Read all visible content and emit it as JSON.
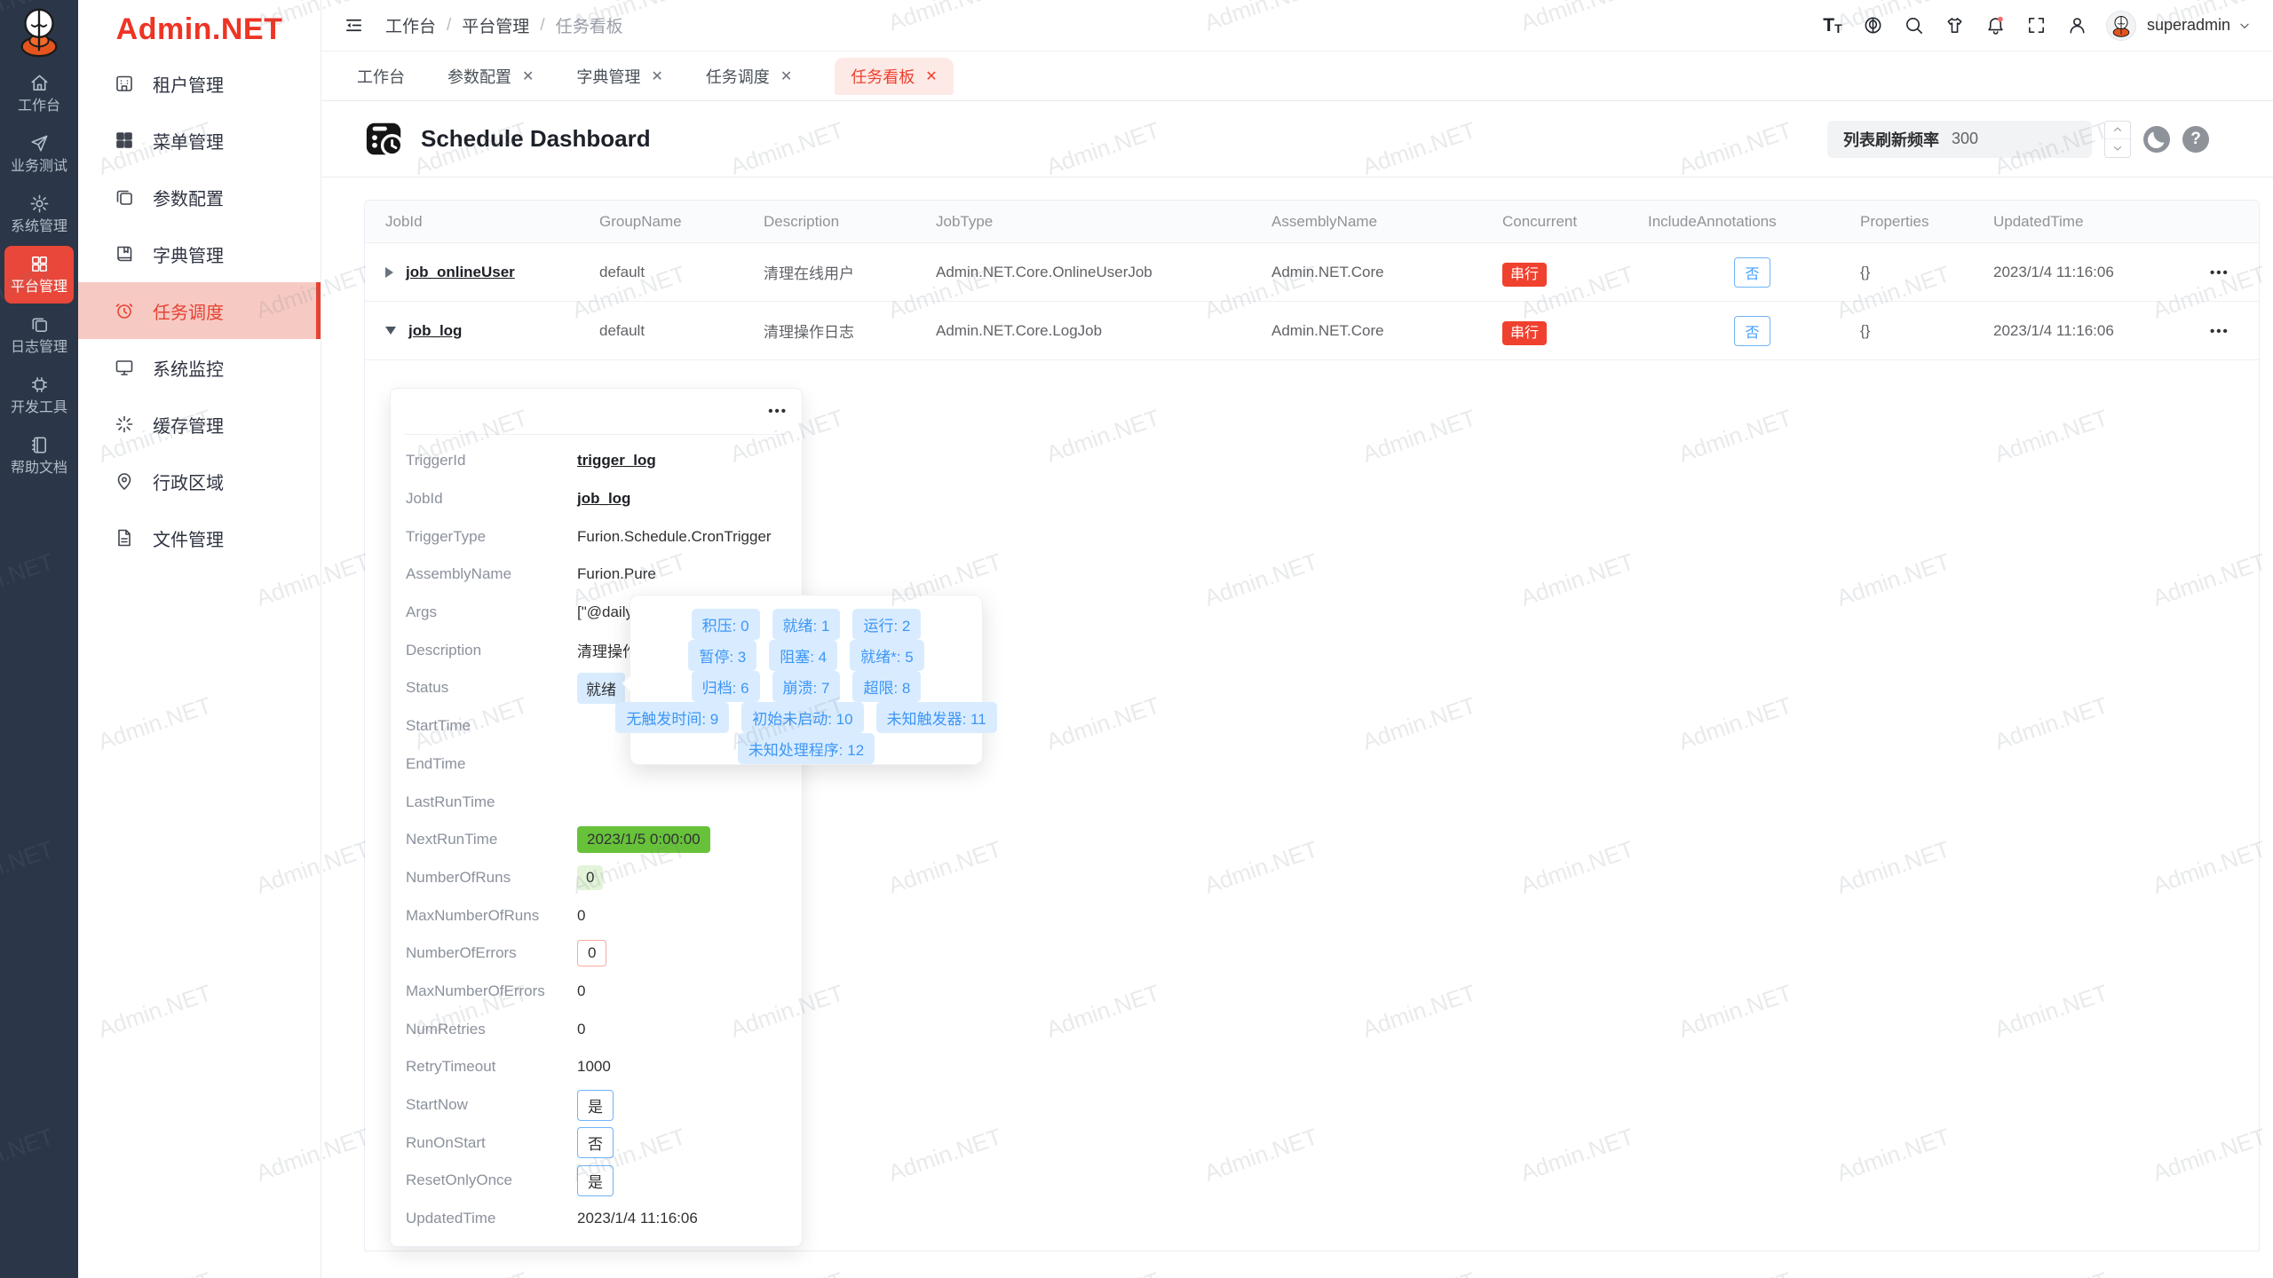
{
  "watermark": {
    "text": "Admin.NET"
  },
  "colors": {
    "accent": "#ee3f2e",
    "blue": "#409eff",
    "green": "#67c23a",
    "rail_bg": "#2b3648"
  },
  "icons": {
    "close": "✕",
    "ellipsis": "•••",
    "breadcrumb_separator": "/",
    "help": "?"
  },
  "rail": {
    "items": [
      {
        "label": "工作台"
      },
      {
        "label": "业务测试"
      },
      {
        "label": "系统管理"
      },
      {
        "label": "平台管理",
        "active": true
      },
      {
        "label": "日志管理"
      },
      {
        "label": "开发工具"
      },
      {
        "label": "帮助文档"
      }
    ]
  },
  "sidebar": {
    "logo_text": "Admin.NET",
    "items": [
      {
        "label": "租户管理"
      },
      {
        "label": "菜单管理"
      },
      {
        "label": "参数配置"
      },
      {
        "label": "字典管理"
      },
      {
        "label": "任务调度",
        "active": true
      },
      {
        "label": "系统监控"
      },
      {
        "label": "缓存管理"
      },
      {
        "label": "行政区域"
      },
      {
        "label": "文件管理"
      }
    ]
  },
  "topnav": {
    "breadcrumb": [
      "工作台",
      "平台管理",
      "任务看板"
    ],
    "username": "superadmin"
  },
  "tabs": [
    {
      "label": "工作台"
    },
    {
      "label": "参数配置"
    },
    {
      "label": "字典管理"
    },
    {
      "label": "任务调度"
    },
    {
      "label": "任务看板",
      "active": true
    }
  ],
  "page": {
    "title": "Schedule Dashboard",
    "refresh_label": "列表刷新频率",
    "refresh_value": "300"
  },
  "table": {
    "columns": [
      "JobId",
      "GroupName",
      "Description",
      "JobType",
      "AssemblyName",
      "Concurrent",
      "IncludeAnnotations",
      "Properties",
      "UpdatedTime"
    ],
    "rows": [
      {
        "jobId": "job_onlineUser",
        "groupName": "default",
        "description": "清理在线用户",
        "jobType": "Admin.NET.Core.OnlineUserJob",
        "assemblyName": "Admin.NET.Core",
        "concurrent": "串行",
        "includeAnnotations": "否",
        "properties": "{}",
        "updatedTime": "2023/1/4 11:16:06",
        "actions": "•••"
      },
      {
        "jobId": "job_log",
        "groupName": "default",
        "description": "清理操作日志",
        "jobType": "Admin.NET.Core.LogJob",
        "assemblyName": "Admin.NET.Core",
        "concurrent": "串行",
        "includeAnnotations": "否",
        "properties": "{}",
        "updatedTime": "2023/1/4 11:16:06",
        "actions": "•••"
      }
    ]
  },
  "detail": {
    "menu_icon": "•••",
    "fields": [
      {
        "label": "TriggerId",
        "value": "trigger_log",
        "type": "link"
      },
      {
        "label": "JobId",
        "value": "job_log",
        "type": "link"
      },
      {
        "label": "TriggerType",
        "value": "Furion.Schedule.CronTrigger",
        "type": "text"
      },
      {
        "label": "AssemblyName",
        "value": "Furion.Pure",
        "type": "text"
      },
      {
        "label": "Args",
        "value": "[\"@daily",
        "type": "text"
      },
      {
        "label": "Description",
        "value": "清理操作",
        "type": "text"
      },
      {
        "label": "Status",
        "value": "就绪",
        "type": "tag-blue-light"
      },
      {
        "label": "StartTime",
        "value": "",
        "type": "text"
      },
      {
        "label": "EndTime",
        "value": "",
        "type": "text"
      },
      {
        "label": "LastRunTime",
        "value": "",
        "type": "text"
      },
      {
        "label": "NextRunTime",
        "value": "2023/1/5 0:00:00",
        "type": "tag-green"
      },
      {
        "label": "NumberOfRuns",
        "value": "0",
        "type": "tag-green-light"
      },
      {
        "label": "MaxNumberOfRuns",
        "value": "0",
        "type": "text"
      },
      {
        "label": "NumberOfErrors",
        "value": "0",
        "type": "tag-red-outline"
      },
      {
        "label": "MaxNumberOfErrors",
        "value": "0",
        "type": "text"
      },
      {
        "label": "NumRetries",
        "value": "0",
        "type": "text"
      },
      {
        "label": "RetryTimeout",
        "value": "1000",
        "type": "text"
      },
      {
        "label": "StartNow",
        "value": "是",
        "type": "tag-blue-outline"
      },
      {
        "label": "RunOnStart",
        "value": "否",
        "type": "tag-blue-outline"
      },
      {
        "label": "ResetOnlyOnce",
        "value": "是",
        "type": "tag-blue-outline"
      },
      {
        "label": "UpdatedTime",
        "value": "2023/1/4 11:16:06",
        "type": "text"
      }
    ]
  },
  "tooltip": {
    "badges": [
      "积压: 0",
      "就绪: 1",
      "运行: 2",
      "暂停: 3",
      "阻塞: 4",
      "就绪*: 5",
      "归档: 6",
      "崩溃: 7",
      "超限: 8",
      "无触发时间: 9",
      "初始未启动: 10",
      "未知触发器: 11",
      "未知处理程序: 12"
    ]
  }
}
